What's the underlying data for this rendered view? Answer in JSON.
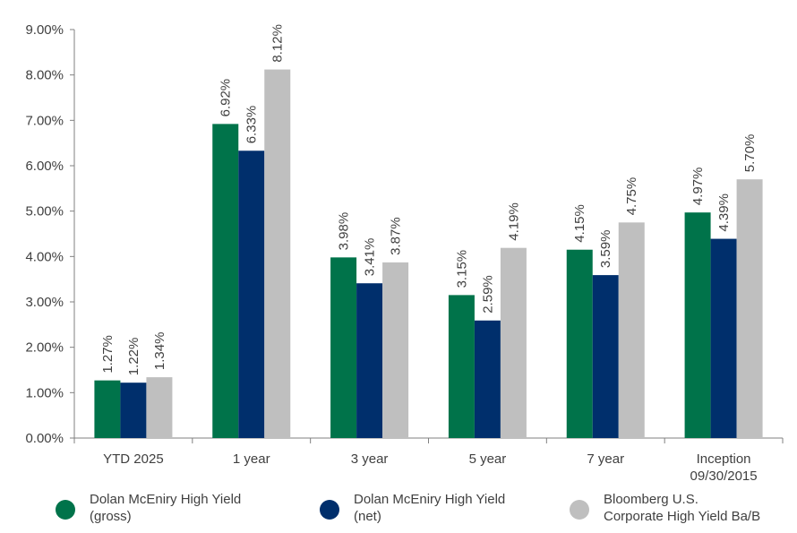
{
  "chart_data": {
    "type": "bar",
    "categories": [
      "YTD 2025",
      "1 year",
      "3 year",
      "5 year",
      "7 year",
      "Inception\n09/30/2015"
    ],
    "series": [
      {
        "name": "Dolan McEniry High Yield\n(gross)",
        "color": "#00734a",
        "values": [
          1.27,
          6.92,
          3.98,
          3.15,
          4.15,
          4.97
        ],
        "labels": [
          "1.27%",
          "6.92%",
          "3.98%",
          "3.15%",
          "4.15%",
          "4.97%"
        ]
      },
      {
        "name": "Dolan McEniry High Yield\n(net)",
        "color": "#002f6c",
        "values": [
          1.22,
          6.33,
          3.41,
          2.59,
          3.59,
          4.39
        ],
        "labels": [
          "1.22%",
          "6.33%",
          "3.41%",
          "2.59%",
          "3.59%",
          "4.39%"
        ]
      },
      {
        "name": "Bloomberg U.S.\nCorporate High Yield Ba/B",
        "color": "#bfbfbf",
        "values": [
          1.34,
          8.12,
          3.87,
          4.19,
          4.75,
          5.7
        ],
        "labels": [
          "1.34%",
          "8.12%",
          "3.87%",
          "4.19%",
          "4.75%",
          "5.70%"
        ]
      }
    ],
    "ylim": [
      0,
      9
    ],
    "yticks": [
      0,
      1,
      2,
      3,
      4,
      5,
      6,
      7,
      8,
      9
    ],
    "ytick_labels": [
      "0.00%",
      "1.00%",
      "2.00%",
      "3.00%",
      "4.00%",
      "5.00%",
      "6.00%",
      "7.00%",
      "8.00%",
      "9.00%"
    ],
    "grid": false,
    "legend_position": "bottom",
    "axis_color": "#808080"
  }
}
